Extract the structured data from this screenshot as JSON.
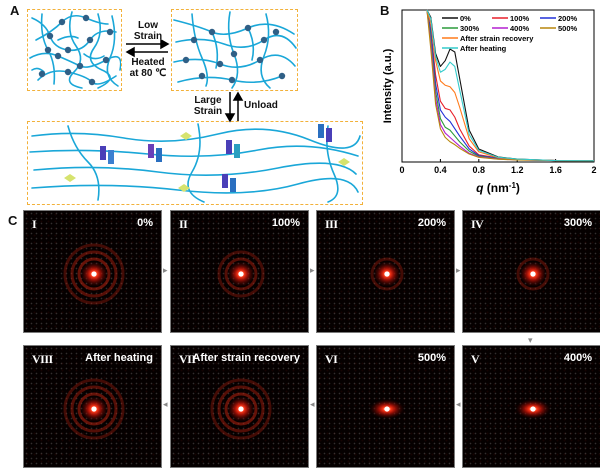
{
  "panels": {
    "a": "A",
    "b": "B",
    "c": "C"
  },
  "schematic": {
    "low_strain": "Low\nStrain",
    "heated": "Heated\nat 80 ℃",
    "large_strain": "Large\nStrain",
    "unload": "Unload"
  },
  "chart_data": {
    "type": "line",
    "xlabel_q": "q",
    "xlabel_unit": " (nm",
    "xlabel_exp": "-1",
    "xlabel_close": ")",
    "ylabel": "Intensity (a.u.)",
    "xlim": [
      0,
      2
    ],
    "xticks": [
      "0",
      "0.4",
      "0.8",
      "1.2",
      "1.6",
      "2"
    ],
    "x": [
      0.3,
      0.35,
      0.4,
      0.45,
      0.5,
      0.55,
      0.6,
      0.7,
      0.8,
      1.0,
      1.2,
      1.6,
      2.0
    ],
    "series": [
      {
        "name": "0%",
        "color": "#111111",
        "values": [
          10,
          7.5,
          6.6,
          7.0,
          7.8,
          7.6,
          5.8,
          2.2,
          0.9,
          0.35,
          0.2,
          0.1,
          0.08
        ]
      },
      {
        "name": "100%",
        "color": "#e8202a",
        "values": [
          9.2,
          6.0,
          4.2,
          3.7,
          3.6,
          3.1,
          2.3,
          1.1,
          0.5,
          0.28,
          0.18,
          0.1,
          0.08
        ]
      },
      {
        "name": "200%",
        "color": "#2030d8",
        "values": [
          9.0,
          5.4,
          3.6,
          3.1,
          2.8,
          2.3,
          1.8,
          0.9,
          0.45,
          0.25,
          0.17,
          0.1,
          0.08
        ]
      },
      {
        "name": "300%",
        "color": "#2a9a3a",
        "values": [
          8.6,
          4.9,
          3.0,
          2.4,
          2.2,
          1.8,
          1.4,
          0.75,
          0.4,
          0.22,
          0.16,
          0.1,
          0.08
        ]
      },
      {
        "name": "400%",
        "color": "#b21fd1",
        "values": [
          8.2,
          4.4,
          2.6,
          2.0,
          1.7,
          1.4,
          1.1,
          0.6,
          0.35,
          0.2,
          0.15,
          0.1,
          0.08
        ]
      },
      {
        "name": "500%",
        "color": "#b8860b",
        "values": [
          7.8,
          4.0,
          2.3,
          1.7,
          1.4,
          1.2,
          0.95,
          0.55,
          0.32,
          0.19,
          0.14,
          0.1,
          0.08
        ]
      },
      {
        "name": "After strain recovery",
        "color": "#ff7a1a",
        "values": [
          9.6,
          7.0,
          5.6,
          5.3,
          5.2,
          4.8,
          3.8,
          1.6,
          0.7,
          0.3,
          0.19,
          0.1,
          0.08
        ]
      },
      {
        "name": "After heating",
        "color": "#33cbcb",
        "values": [
          9.9,
          7.3,
          6.2,
          6.4,
          6.9,
          6.6,
          5.0,
          1.9,
          0.8,
          0.33,
          0.2,
          0.1,
          0.08
        ]
      }
    ],
    "legend_position": "top-right"
  },
  "saxs": {
    "tiles": [
      {
        "roman": "I",
        "label": "0%",
        "rings": 3
      },
      {
        "roman": "II",
        "label": "100%",
        "rings": 2
      },
      {
        "roman": "III",
        "label": "200%",
        "rings": 1
      },
      {
        "roman": "IV",
        "label": "300%",
        "rings": 1
      },
      {
        "roman": "VIII",
        "label": "After heating",
        "rings": 3
      },
      {
        "roman": "VII",
        "label": "After strain recovery",
        "rings": 3
      },
      {
        "roman": "VI",
        "label": "500%",
        "rings": 0
      },
      {
        "roman": "V",
        "label": "400%",
        "rings": 0
      }
    ]
  }
}
